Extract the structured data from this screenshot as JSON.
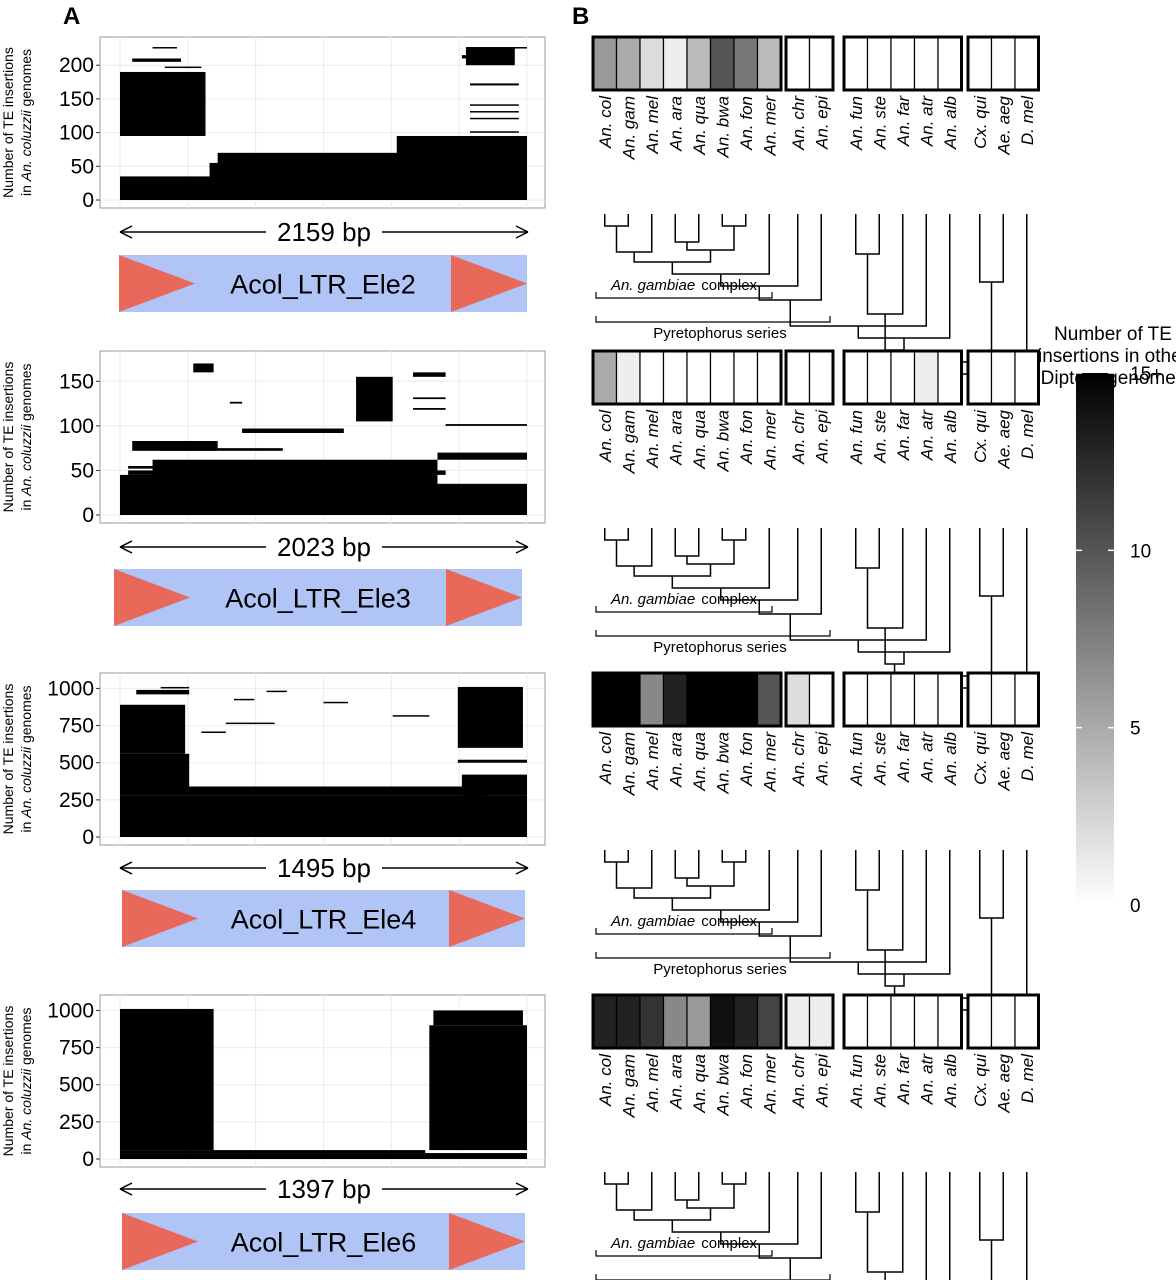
{
  "panel_labels": {
    "a": "A",
    "b": "B"
  },
  "ylabel_line1": "Number of TE insertions",
  "ylabel_prefix": "in ",
  "ylabel_species": "An. coluzzii",
  "ylabel_suffix": " genomes",
  "species": [
    "An. col",
    "An. gam",
    "An. mel",
    "An. ara",
    "An. qua",
    "An. bwa",
    "An. fon",
    "An. mer",
    "An. chr",
    "An. epi",
    "An. fun",
    "An. ste",
    "An. far",
    "An. atr",
    "An. alb",
    "Cx. qui",
    "Ae. aeg",
    "D. mel"
  ],
  "complex_label_italic": "An. gambiae",
  "complex_label_rest": "complex",
  "series_label": "Pyretophorus series",
  "colorbar": {
    "title_lines": [
      "Number of TE",
      "insertions in other",
      "Diptera genomes"
    ],
    "ticks": [
      {
        "label": "15+",
        "value": 15
      },
      {
        "label": "10",
        "value": 10
      },
      {
        "label": "5",
        "value": 5
      },
      {
        "label": "0",
        "value": 0
      }
    ],
    "color_min": "#ffffff",
    "color_max": "#000000"
  },
  "colors": {
    "arrow": "#e8685a",
    "element_bar": "#b0c4f5",
    "coverage": "#000000",
    "grid": "#ebebeb"
  },
  "chart_data": [
    {
      "type": "coverage",
      "element": "Acol_LTR_Ele2",
      "length_label": "2159 bp",
      "yticks": [
        "0",
        "50",
        "100",
        "150",
        "200"
      ],
      "ylim": [
        0,
        230
      ],
      "heatmap_values": [
        6,
        5,
        2,
        1,
        4,
        10,
        8,
        4,
        0,
        0,
        0,
        0,
        0,
        0,
        0,
        0,
        0,
        0
      ]
    },
    {
      "type": "coverage",
      "element": "Acol_LTR_Ele3",
      "length_label": "2023 bp",
      "yticks": [
        "0",
        "50",
        "100",
        "150"
      ],
      "ylim": [
        0,
        175
      ],
      "heatmap_values": [
        5,
        1,
        0,
        0,
        0,
        0,
        0,
        0,
        0,
        0,
        0,
        0,
        0,
        1,
        0,
        0,
        0,
        0
      ]
    },
    {
      "type": "coverage",
      "element": "Acol_LTR_Ele4",
      "length_label": "1495 bp",
      "yticks": [
        "0",
        "250",
        "500",
        "750",
        "1000"
      ],
      "ylim": [
        0,
        1050
      ],
      "heatmap_values": [
        15,
        15,
        7,
        13,
        15,
        15,
        15,
        10,
        2,
        0,
        0,
        0,
        0,
        0,
        0,
        0,
        0,
        0
      ]
    },
    {
      "type": "coverage",
      "element": "Acol_LTR_Ele6",
      "length_label": "1397 bp",
      "yticks": [
        "0",
        "250",
        "500",
        "750",
        "1000"
      ],
      "ylim": [
        0,
        1050
      ],
      "heatmap_values": [
        13,
        13,
        12,
        7,
        6,
        14,
        13,
        11,
        1,
        1,
        0,
        0,
        0,
        0,
        0,
        0,
        0,
        0
      ]
    }
  ]
}
